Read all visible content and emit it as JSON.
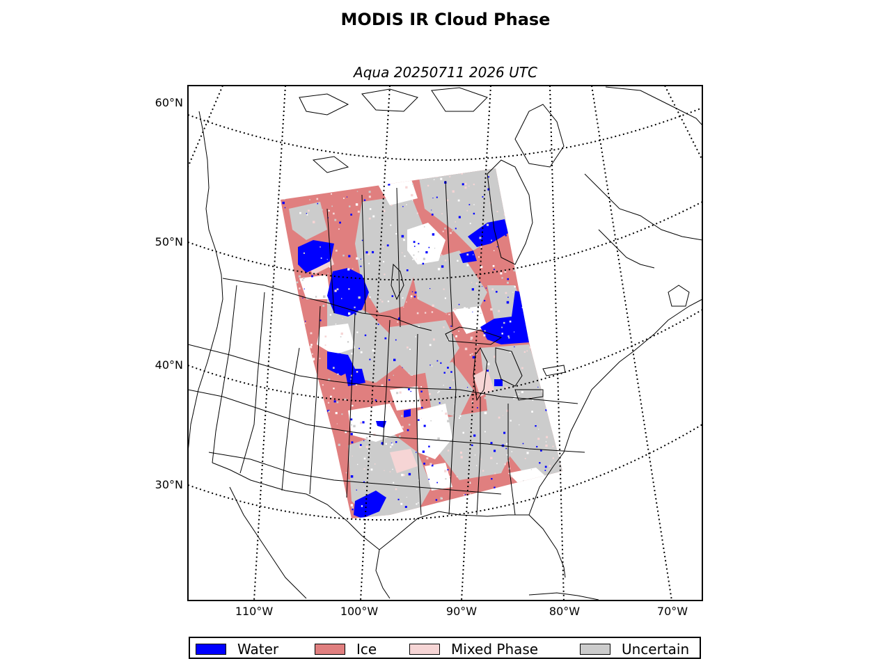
{
  "title": "MODIS IR Cloud Phase",
  "subtitle": "Aqua 20250711 2026 UTC",
  "latitude_labels": [
    "60°N",
    "50°N",
    "40°N",
    "30°N"
  ],
  "longitude_labels": [
    "110°W",
    "100°W",
    "90°W",
    "80°W",
    "70°W"
  ],
  "legend": [
    {
      "label": "Water",
      "color": "#0000ff"
    },
    {
      "label": "Ice",
      "color": "#e07f7f"
    },
    {
      "label": "Mixed Phase",
      "color": "#f6d5d5"
    },
    {
      "label": "Uncertain",
      "color": "#cccccc"
    }
  ],
  "colors": {
    "water": "#0000ff",
    "ice": "#e07f7f",
    "mixed": "#f6d5d5",
    "uncertain": "#cccccc",
    "clear": "#ffffff"
  }
}
